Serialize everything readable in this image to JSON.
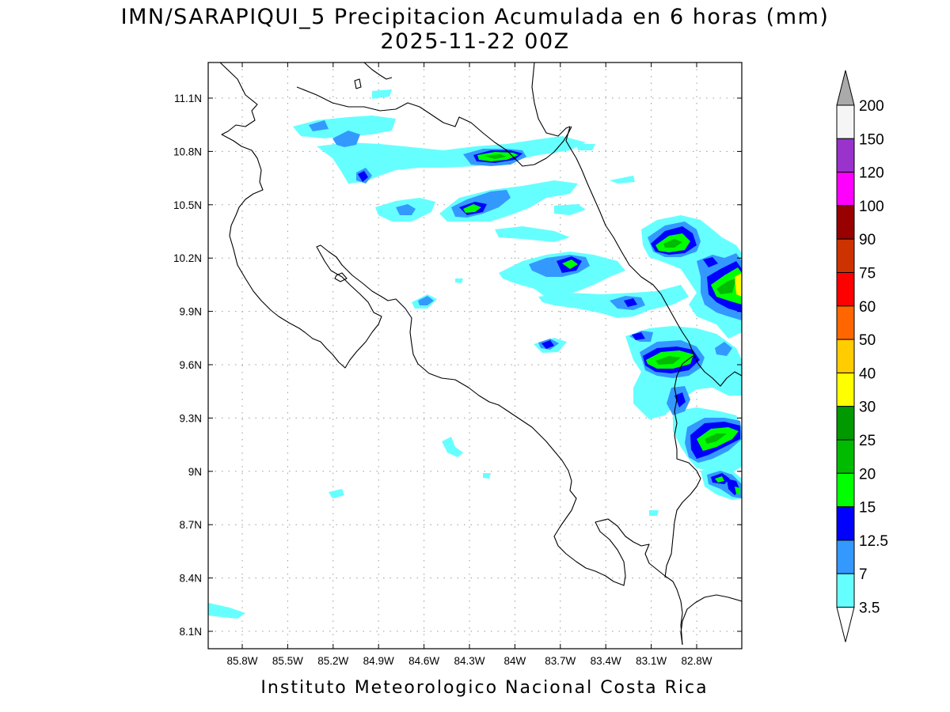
{
  "title_line1": "IMN/SARAPIQUI_5 Precipitacion Acumulada en 6 horas (mm)",
  "title_line2": "2025-11-22 00Z",
  "footer": "Instituto Meteorologico Nacional Costa Rica",
  "map": {
    "lon_ticks": [
      "85.8W",
      "85.5W",
      "85.2W",
      "84.9W",
      "84.6W",
      "84.3W",
      "84W",
      "83.7W",
      "83.4W",
      "83.1W",
      "82.8W"
    ],
    "lat_ticks": [
      "11.1N",
      "10.8N",
      "10.5N",
      "10.2N",
      "9.9N",
      "9.6N",
      "9.3N",
      "9N",
      "8.7N",
      "8.4N",
      "8.1N"
    ],
    "grid": "dotted"
  },
  "colorbar": {
    "labels": [
      "200",
      "150",
      "120",
      "100",
      "90",
      "75",
      "60",
      "50",
      "40",
      "30",
      "25",
      "20",
      "15",
      "12.5",
      "7",
      "3.5"
    ],
    "colors": [
      "#f5f5f5",
      "#9933cc",
      "#ff00ff",
      "#990000",
      "#cc3300",
      "#ff0000",
      "#ff6600",
      "#ffcc00",
      "#ffff00",
      "#009900",
      "#00bb00",
      "#00ff00",
      "#0000ff",
      "#3399ff",
      "#66ffff"
    ],
    "top_arrow_color": "#aaaaaa",
    "bottom_arrow_color": "#ffffff"
  }
}
